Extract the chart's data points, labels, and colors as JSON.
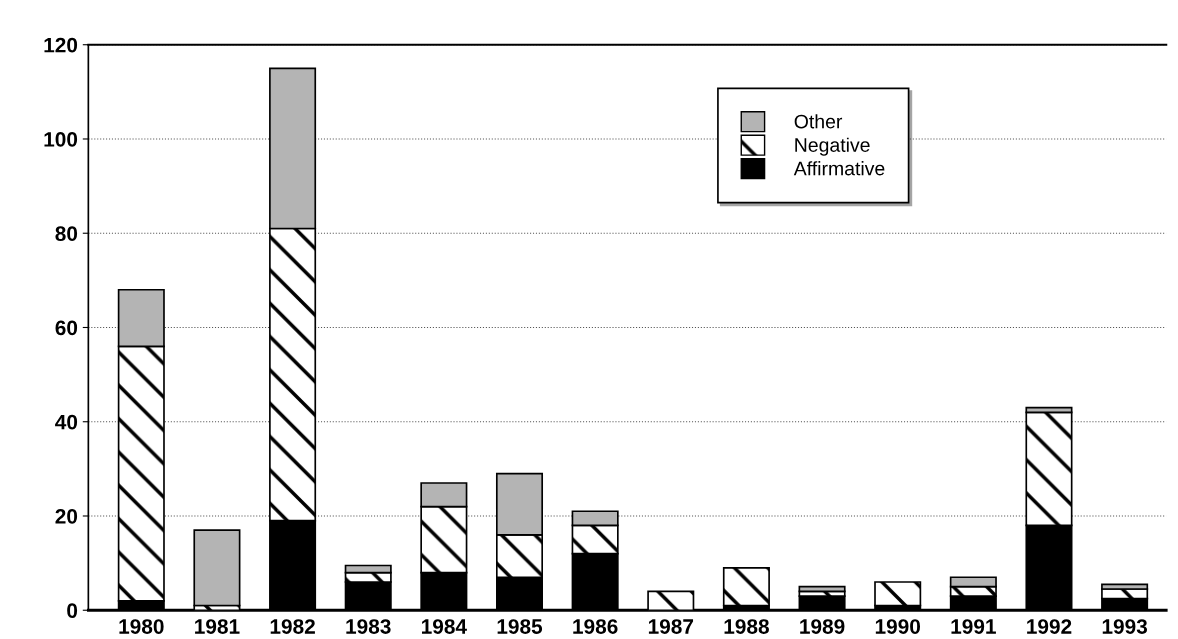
{
  "chart_data": {
    "type": "bar",
    "stacked": true,
    "categories": [
      "1980",
      "1981",
      "1982",
      "1983",
      "1984",
      "1985",
      "1986",
      "1987",
      "1988",
      "1989",
      "1990",
      "1991",
      "1992",
      "1993"
    ],
    "series": [
      {
        "name": "Affirmative",
        "color": "#000000",
        "values": [
          2,
          null,
          19,
          6,
          8,
          7,
          12,
          null,
          1,
          3,
          1,
          3,
          18,
          2.5
        ]
      },
      {
        "name": "Negative",
        "color": "#ffffff",
        "values": [
          54,
          1,
          62,
          2,
          14,
          9,
          6,
          4,
          8,
          1,
          5,
          2,
          24,
          2
        ]
      },
      {
        "name": "Other",
        "color": "#b4b4b4",
        "values": [
          12,
          16,
          34,
          1.5,
          5,
          13,
          3,
          null,
          null,
          1,
          null,
          2,
          1,
          1
        ]
      }
    ],
    "ylim": [
      0,
      120
    ],
    "yticks": [
      0,
      20,
      40,
      60,
      80,
      100,
      120
    ],
    "grid": "y",
    "legend": "top right"
  }
}
